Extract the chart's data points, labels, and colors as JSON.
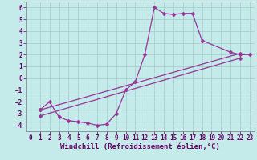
{
  "xlabel": "Windchill (Refroidissement éolien,°C)",
  "bg_color": "#c5eaea",
  "line_color": "#993399",
  "marker": "D",
  "markersize": 2.5,
  "linewidth": 0.9,
  "xlim": [
    -0.5,
    23.5
  ],
  "ylim": [
    -4.5,
    6.5
  ],
  "xticks": [
    0,
    1,
    2,
    3,
    4,
    5,
    6,
    7,
    8,
    9,
    10,
    11,
    12,
    13,
    14,
    15,
    16,
    17,
    18,
    19,
    20,
    21,
    22,
    23
  ],
  "yticks": [
    -4,
    -3,
    -2,
    -1,
    0,
    1,
    2,
    3,
    4,
    5,
    6
  ],
  "grid_color": "#a0cccc",
  "line1_x": [
    1,
    2,
    3,
    4,
    5,
    6,
    7,
    8,
    9,
    10,
    11,
    12,
    13,
    14,
    15,
    16,
    17,
    18,
    21,
    22,
    23
  ],
  "line1_y": [
    -2.7,
    -2.0,
    -3.3,
    -3.6,
    -3.7,
    -3.8,
    -4.0,
    -3.9,
    -3.0,
    -1.0,
    -0.3,
    2.0,
    6.0,
    5.5,
    5.4,
    5.5,
    5.5,
    3.2,
    2.2,
    2.0,
    2.0
  ],
  "line2_x": [
    1,
    22
  ],
  "line2_y": [
    -2.7,
    2.1
  ],
  "line3_x": [
    1,
    22
  ],
  "line3_y": [
    -3.2,
    1.7
  ],
  "tick_fontsize": 5.5,
  "xlabel_fontsize": 6.5,
  "spine_color": "#777777",
  "label_color": "#660066"
}
